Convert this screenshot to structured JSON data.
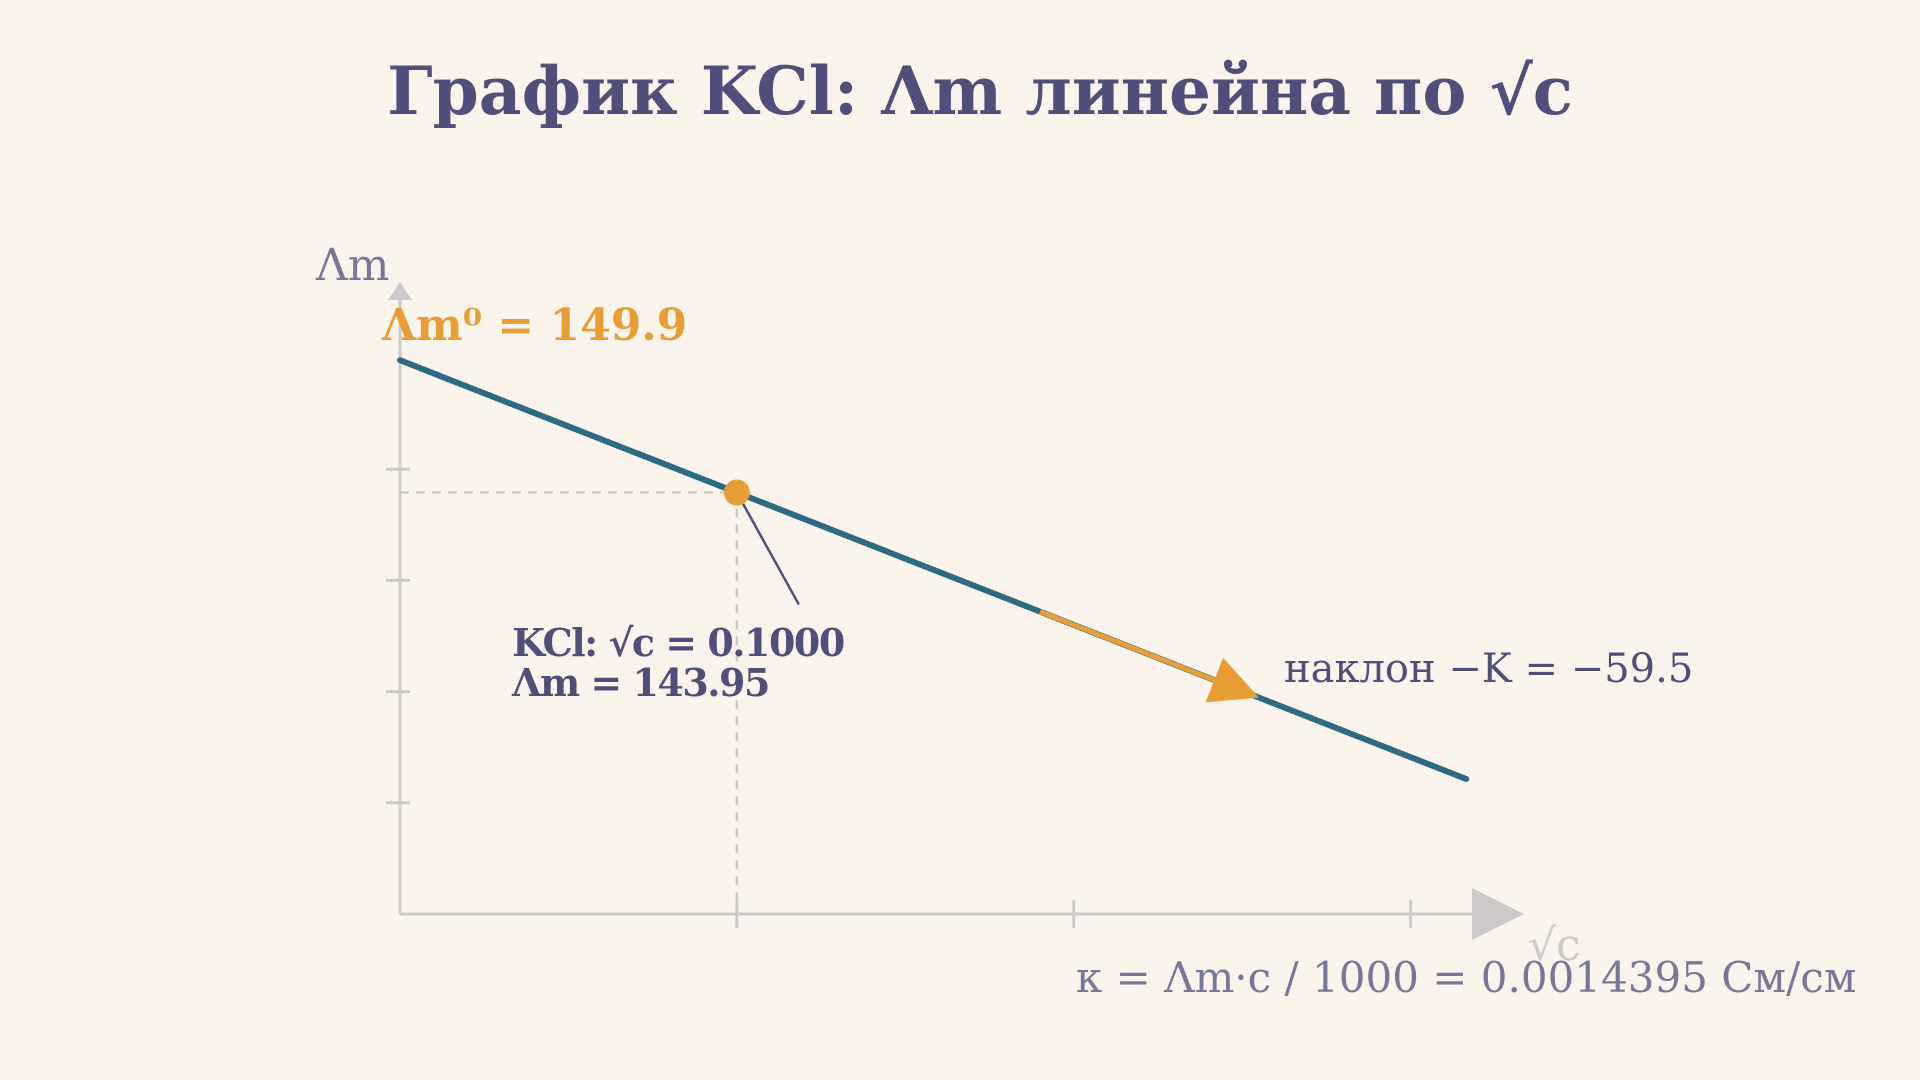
{
  "colors": {
    "background": "#faf4ed",
    "text": "#524e7a",
    "muted": "#7a7698",
    "accent": "#e89e36",
    "line": "#2d6a84",
    "axis": "#cfcaca"
  },
  "chart_data": {
    "type": "line",
    "title": "График KCl: Λm линейна по √c",
    "xlabel": "√c",
    "ylabel": "Λm",
    "xlim": [
      0,
      0.32
    ],
    "ylim": [
      125,
      150
    ],
    "x_ticks": [
      0.1,
      0.2,
      0.3
    ],
    "y_ticks": [
      130,
      135,
      140,
      145
    ],
    "grid": false,
    "series": [
      {
        "x": [
          0,
          0.3165
        ],
        "y": [
          149.9,
          131.07
        ]
      }
    ],
    "reference_line": {
      "y": 149.9,
      "label": "Λm⁰ = 149.9"
    },
    "highlight_point": {
      "x": 0.1,
      "y": 143.95,
      "label_line1": "KCl: √c = 0.1000",
      "label_line2": "Λm = 143.95"
    },
    "slope_arrow": {
      "x_start": 0.19,
      "x_end": 0.255
    },
    "slope_label": "наклон −K = −59.5",
    "formula": "κ = Λm·c / 1000 = 0.0014395 См/см"
  }
}
